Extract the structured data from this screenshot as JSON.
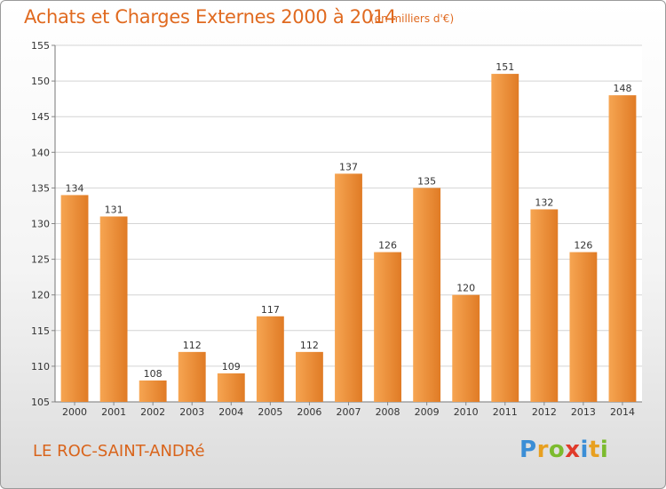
{
  "header": {
    "title": "Achats et Charges Externes 2000 à 2014",
    "subtitle": "(en milliers d'€)"
  },
  "footer": {
    "place": "LE ROC-SAINT-ANDRé",
    "logo": {
      "letters": [
        "P",
        "r",
        "o",
        "x",
        "i",
        "t",
        "i"
      ],
      "colors": [
        "#3b8ed6",
        "#e8a020",
        "#7cbb2e",
        "#e03a2a",
        "#3b8ed6",
        "#e8a020",
        "#7cbb2e"
      ]
    }
  },
  "colors": {
    "bar_light": "#f6a552",
    "bar_dark": "#e07b25",
    "grid": "#d4d4d4",
    "title": "#e06a20"
  },
  "chart_data": {
    "type": "bar",
    "categories": [
      "2000",
      "2001",
      "2002",
      "2003",
      "2004",
      "2005",
      "2006",
      "2007",
      "2008",
      "2009",
      "2010",
      "2011",
      "2012",
      "2013",
      "2014"
    ],
    "values": [
      134,
      131,
      108,
      112,
      109,
      117,
      112,
      137,
      126,
      135,
      120,
      151,
      132,
      126,
      148
    ],
    "data_labels": [
      "134",
      "131",
      "108",
      "112",
      "109",
      "117",
      "112",
      "137",
      "126",
      "135",
      "120",
      "151",
      "132",
      "126",
      "148"
    ],
    "title": "Achats et Charges Externes 2000 à 2014",
    "xlabel": "",
    "ylabel": "",
    "ylim": [
      105,
      155
    ],
    "yticks": [
      105,
      110,
      115,
      120,
      125,
      130,
      135,
      140,
      145,
      150,
      155
    ],
    "ytick_labels": [
      "105",
      "110",
      "115",
      "120",
      "125",
      "130",
      "135",
      "140",
      "145",
      "150",
      "155"
    ],
    "grid": true
  }
}
